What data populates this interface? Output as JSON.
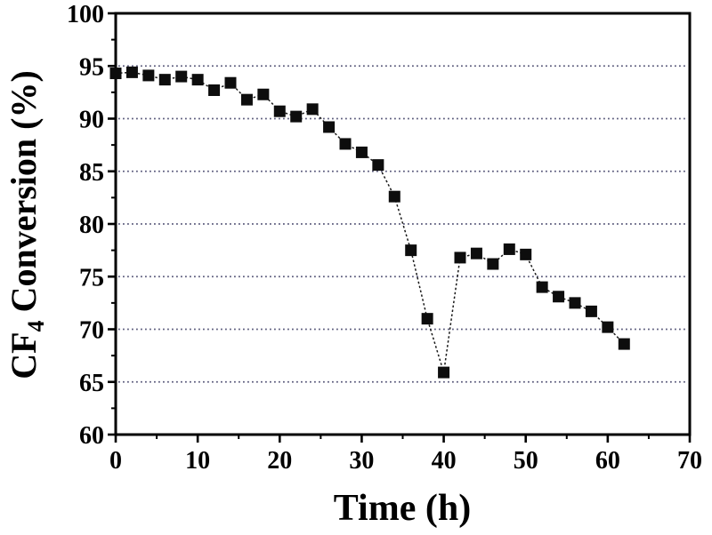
{
  "figure": {
    "background": "#ffffff",
    "axis_color": "#000000",
    "grid_color": "#4a4a6e",
    "line_color": "#1a1a1a",
    "marker_color": "#0d0d0d"
  },
  "chart_data": {
    "type": "scatter",
    "title": "",
    "xlabel": "Time (h)",
    "ylabel": "CF4 Conversion (%)",
    "ylabel_parts": {
      "prefix": "CF",
      "subscript": "4",
      "suffix": "Conversion (%)"
    },
    "x": [
      0,
      2,
      4,
      6,
      8,
      10,
      12,
      14,
      16,
      18,
      20,
      22,
      24,
      26,
      28,
      30,
      32,
      34,
      36,
      38,
      40,
      42,
      44,
      46,
      48,
      50,
      52,
      54,
      56,
      58,
      60,
      62
    ],
    "y": [
      94.3,
      94.4,
      94.1,
      93.7,
      94.0,
      93.7,
      92.7,
      93.4,
      91.8,
      92.3,
      90.7,
      90.2,
      90.9,
      89.2,
      87.6,
      86.8,
      85.6,
      82.6,
      77.5,
      71.0,
      65.9,
      76.8,
      77.2,
      76.2,
      77.6,
      77.1,
      74.0,
      73.1,
      72.5,
      71.7,
      70.2,
      68.6
    ],
    "xlim": [
      0,
      70
    ],
    "ylim": [
      60,
      100
    ],
    "x_ticks": [
      0,
      10,
      20,
      30,
      40,
      50,
      60,
      70
    ],
    "y_ticks": [
      60,
      65,
      70,
      75,
      80,
      85,
      90,
      95,
      100
    ],
    "x_minor_step": 5,
    "y_minor_step": 2.5,
    "gridlines_y": [
      65,
      70,
      75,
      80,
      85,
      90,
      95
    ],
    "grid_style": "dotted",
    "legend": "none",
    "marker": "filled-square",
    "line_style": "dash-dot"
  }
}
